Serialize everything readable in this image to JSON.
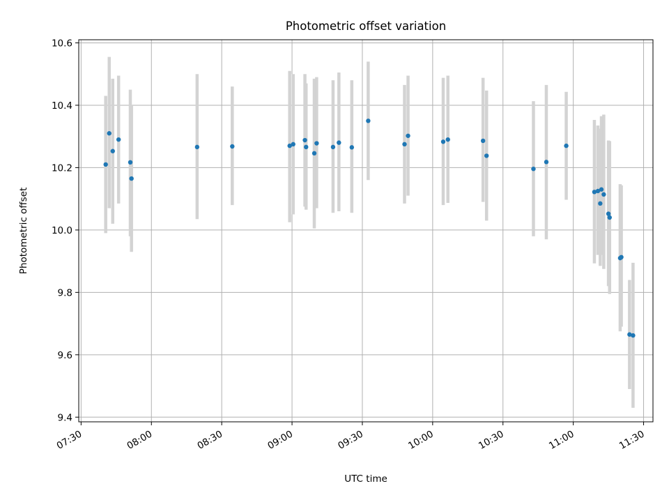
{
  "chart_data": {
    "type": "scatter",
    "title": "Photometric offset variation",
    "xlabel": "UTC time",
    "ylabel": "Photometric offset",
    "xlim": [
      "07:29",
      "11:34"
    ],
    "ylim": [
      9.385,
      10.61
    ],
    "xticks": [
      "07:30",
      "08:00",
      "08:30",
      "09:00",
      "09:30",
      "10:00",
      "10:30",
      "11:00",
      "11:30"
    ],
    "yticks": [
      "9.4",
      "9.6",
      "9.8",
      "10.0",
      "10.2",
      "10.4",
      "10.6"
    ],
    "grid": true,
    "legend": "none",
    "marker_color": "#1f77b4",
    "errorbar_color": "#d3d3d3",
    "points": [
      {
        "t": "07:40:30",
        "y": 10.21,
        "lo": 9.99,
        "hi": 10.43
      },
      {
        "t": "07:42:00",
        "y": 10.31,
        "lo": 10.07,
        "hi": 10.555
      },
      {
        "t": "07:43:30",
        "y": 10.253,
        "lo": 10.02,
        "hi": 10.485
      },
      {
        "t": "07:46:00",
        "y": 10.29,
        "lo": 10.085,
        "hi": 10.495
      },
      {
        "t": "07:51:00",
        "y": 10.217,
        "lo": 9.98,
        "hi": 10.45
      },
      {
        "t": "07:51:30",
        "y": 10.165,
        "lo": 9.93,
        "hi": 10.4
      },
      {
        "t": "08:19:30",
        "y": 10.266,
        "lo": 10.035,
        "hi": 10.5
      },
      {
        "t": "08:34:30",
        "y": 10.268,
        "lo": 10.08,
        "hi": 10.46
      },
      {
        "t": "08:59:00",
        "y": 10.27,
        "lo": 10.025,
        "hi": 10.51
      },
      {
        "t": "09:00:30",
        "y": 10.275,
        "lo": 10.05,
        "hi": 10.5
      },
      {
        "t": "09:05:30",
        "y": 10.288,
        "lo": 10.075,
        "hi": 10.5
      },
      {
        "t": "09:06:00",
        "y": 10.266,
        "lo": 10.065,
        "hi": 10.47
      },
      {
        "t": "09:09:30",
        "y": 10.246,
        "lo": 10.005,
        "hi": 10.485
      },
      {
        "t": "09:10:30",
        "y": 10.278,
        "lo": 10.07,
        "hi": 10.49
      },
      {
        "t": "09:17:30",
        "y": 10.266,
        "lo": 10.055,
        "hi": 10.48
      },
      {
        "t": "09:20:00",
        "y": 10.28,
        "lo": 10.06,
        "hi": 10.505
      },
      {
        "t": "09:25:30",
        "y": 10.265,
        "lo": 10.055,
        "hi": 10.48
      },
      {
        "t": "09:32:30",
        "y": 10.35,
        "lo": 10.16,
        "hi": 10.54
      },
      {
        "t": "09:48:00",
        "y": 10.275,
        "lo": 10.085,
        "hi": 10.465
      },
      {
        "t": "09:49:30",
        "y": 10.302,
        "lo": 10.11,
        "hi": 10.495
      },
      {
        "t": "10:04:30",
        "y": 10.283,
        "lo": 10.08,
        "hi": 10.488
      },
      {
        "t": "10:06:30",
        "y": 10.29,
        "lo": 10.087,
        "hi": 10.495
      },
      {
        "t": "10:21:30",
        "y": 10.286,
        "lo": 10.09,
        "hi": 10.488
      },
      {
        "t": "10:23:00",
        "y": 10.238,
        "lo": 10.03,
        "hi": 10.447
      },
      {
        "t": "10:43:00",
        "y": 10.196,
        "lo": 9.98,
        "hi": 10.413
      },
      {
        "t": "10:48:30",
        "y": 10.218,
        "lo": 9.97,
        "hi": 10.465
      },
      {
        "t": "10:57:00",
        "y": 10.27,
        "lo": 10.097,
        "hi": 10.443
      },
      {
        "t": "11:09:00",
        "y": 10.122,
        "lo": 9.893,
        "hi": 10.353
      },
      {
        "t": "11:10:30",
        "y": 10.125,
        "lo": 9.92,
        "hi": 10.335
      },
      {
        "t": "11:11:30",
        "y": 10.085,
        "lo": 9.885,
        "hi": 10.325
      },
      {
        "t": "11:12:00",
        "y": 10.13,
        "lo": 9.92,
        "hi": 10.365
      },
      {
        "t": "11:13:00",
        "y": 10.114,
        "lo": 9.875,
        "hi": 10.37
      },
      {
        "t": "11:15:00",
        "y": 10.052,
        "lo": 9.82,
        "hi": 10.287
      },
      {
        "t": "11:15:30",
        "y": 10.04,
        "lo": 9.795,
        "hi": 10.285
      },
      {
        "t": "11:20:00",
        "y": 9.91,
        "lo": 9.675,
        "hi": 10.147
      },
      {
        "t": "11:20:30",
        "y": 9.913,
        "lo": 9.69,
        "hi": 10.143
      },
      {
        "t": "11:24:00",
        "y": 9.665,
        "lo": 9.49,
        "hi": 9.84
      },
      {
        "t": "11:25:30",
        "y": 9.662,
        "lo": 9.43,
        "hi": 9.895
      }
    ]
  }
}
